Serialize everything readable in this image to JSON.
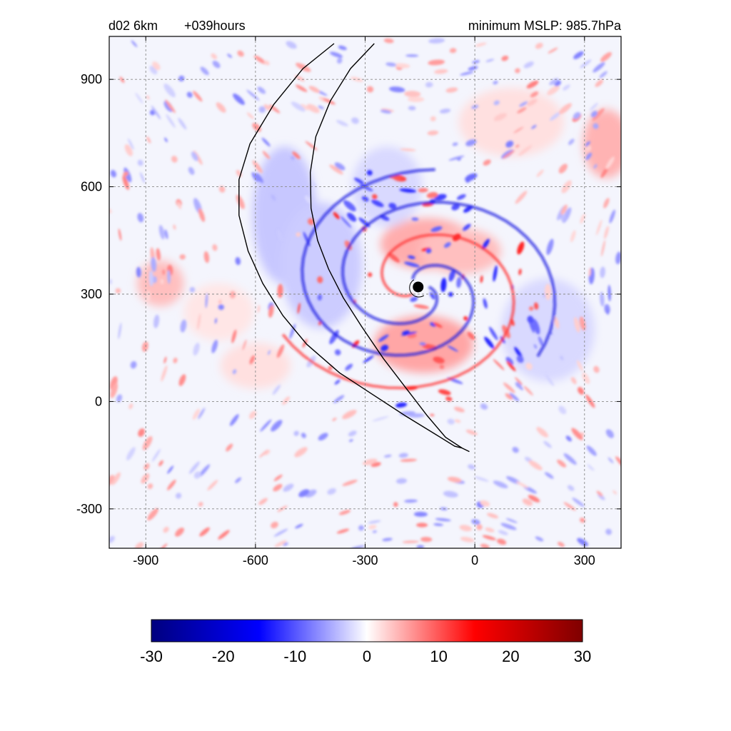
{
  "header": {
    "domain_label": "d02 6km",
    "forecast_time": "+039hours",
    "min_label": "minimum  MSLP: 985.7hPa"
  },
  "map": {
    "x_range": [
      -1000,
      400
    ],
    "y_range": [
      -410,
      1020
    ],
    "x_ticks": [
      {
        "value": -900,
        "label": "-900"
      },
      {
        "value": -600,
        "label": "-600"
      },
      {
        "value": -300,
        "label": "-300"
      },
      {
        "value": 0,
        "label": "0"
      },
      {
        "value": 300,
        "label": "300"
      }
    ],
    "y_ticks": [
      {
        "value": 900,
        "label": "900"
      },
      {
        "value": 600,
        "label": "600"
      },
      {
        "value": 300,
        "label": "300"
      },
      {
        "value": 0,
        "label": "0"
      },
      {
        "value": -300,
        "label": "-300"
      }
    ],
    "grid": "dashed",
    "storm_center": {
      "x": -155,
      "y": 320
    }
  },
  "colorbar": {
    "range": [
      -30,
      30
    ],
    "ticks": [
      {
        "value": -30,
        "label": "-30"
      },
      {
        "value": -20,
        "label": "-20"
      },
      {
        "value": -10,
        "label": "-10"
      },
      {
        "value": 0,
        "label": "0"
      },
      {
        "value": 10,
        "label": "10"
      },
      {
        "value": 20,
        "label": "20"
      },
      {
        "value": 30,
        "label": "30"
      }
    ],
    "colors": [
      "#00007f",
      "#0000ff",
      "#ffffff",
      "#ff0000",
      "#7f0000"
    ]
  }
}
